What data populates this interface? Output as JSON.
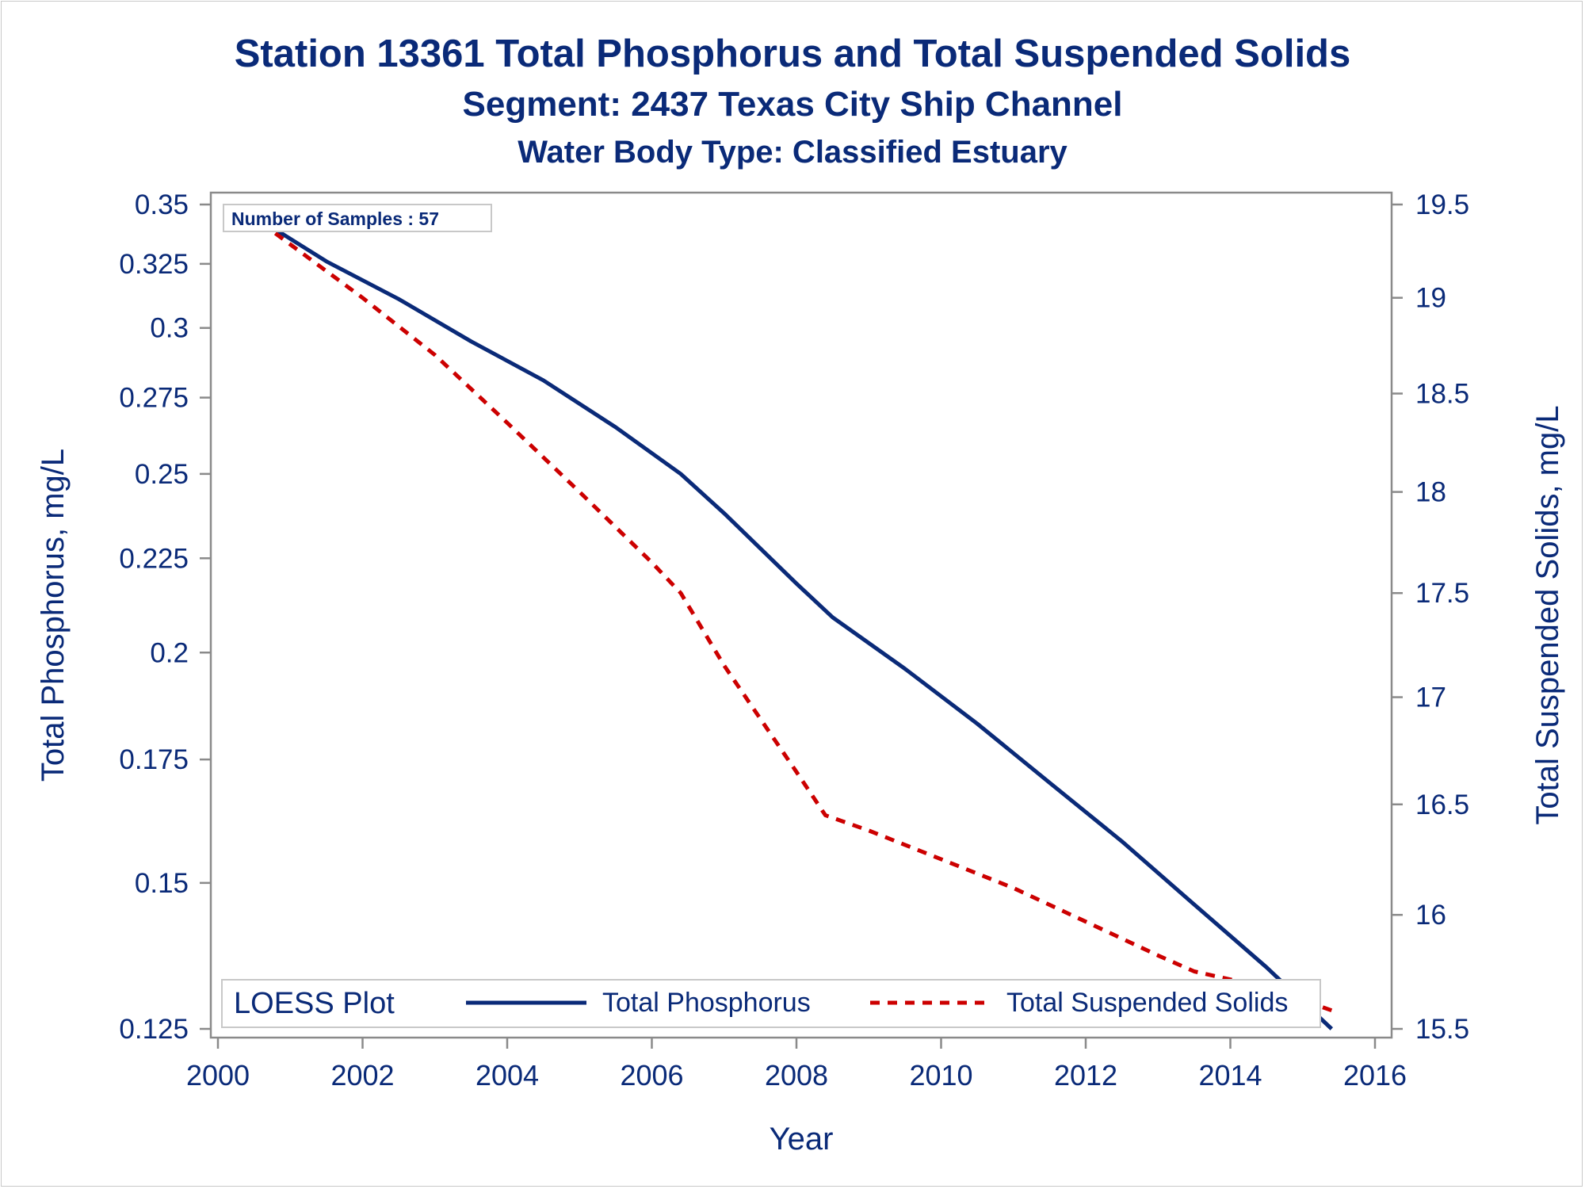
{
  "titles": {
    "line1": "Station 13361  Total Phosphorus and Total Suspended Solids",
    "line2": "Segment: 2437  Texas City Ship Channel",
    "line3": "Water Body Type: Classified Estuary"
  },
  "annotation": "Number of Samples : 57",
  "colors": {
    "text": "#0a2a78",
    "phosphorus": "#0a2a78",
    "tss": "#cc0000",
    "axis": "#8a8a8a"
  },
  "chart_data": {
    "type": "line",
    "title": "Station 13361  Total Phosphorus and Total Suspended Solids",
    "xlabel": "Year",
    "ylabel": "Total Phosphorus, mg/L",
    "y2label": "Total Suspended Solids, mg/L",
    "xlim": [
      2000,
      2016
    ],
    "ylim": [
      0.125,
      0.35
    ],
    "y2lim": [
      15.5,
      19.5
    ],
    "y_scale": "log",
    "y2_scale": "log",
    "grid": false,
    "xticks": [
      2000,
      2002,
      2004,
      2006,
      2008,
      2010,
      2012,
      2014,
      2016
    ],
    "yticks": [
      0.125,
      0.15,
      0.175,
      0.2,
      0.225,
      0.25,
      0.275,
      0.3,
      0.325,
      0.35
    ],
    "y2ticks": [
      15.5,
      16,
      16.5,
      17,
      17.5,
      18,
      18.5,
      19,
      19.5
    ],
    "legend": {
      "title": "LOESS Plot",
      "position": "bottom-inside"
    },
    "series": [
      {
        "name": "Total Phosphorus",
        "axis": "left",
        "style": "solid",
        "x": [
          2000.6,
          2001.5,
          2002.5,
          2003.5,
          2004.5,
          2005.5,
          2006.4,
          2007.0,
          2008.0,
          2008.5,
          2009.5,
          2010.5,
          2011.5,
          2012.5,
          2013.5,
          2014.5,
          2015.4
        ],
        "y": [
          0.343,
          0.326,
          0.311,
          0.295,
          0.281,
          0.265,
          0.25,
          0.238,
          0.218,
          0.209,
          0.196,
          0.183,
          0.17,
          0.158,
          0.146,
          0.135,
          0.125
        ]
      },
      {
        "name": "Total Suspended Solids",
        "axis": "right",
        "style": "dashed",
        "x": [
          2000.6,
          2002.0,
          2003.0,
          2004.0,
          2005.0,
          2006.0,
          2006.4,
          2007.0,
          2008.0,
          2008.4,
          2009.0,
          2010.0,
          2011.0,
          2012.0,
          2013.0,
          2013.5,
          2014.5,
          2015.4
        ],
        "y": [
          19.4,
          19.0,
          18.7,
          18.35,
          18.0,
          17.65,
          17.5,
          17.15,
          16.65,
          16.45,
          16.38,
          16.25,
          16.12,
          15.97,
          15.82,
          15.75,
          15.68,
          15.58
        ]
      }
    ]
  }
}
